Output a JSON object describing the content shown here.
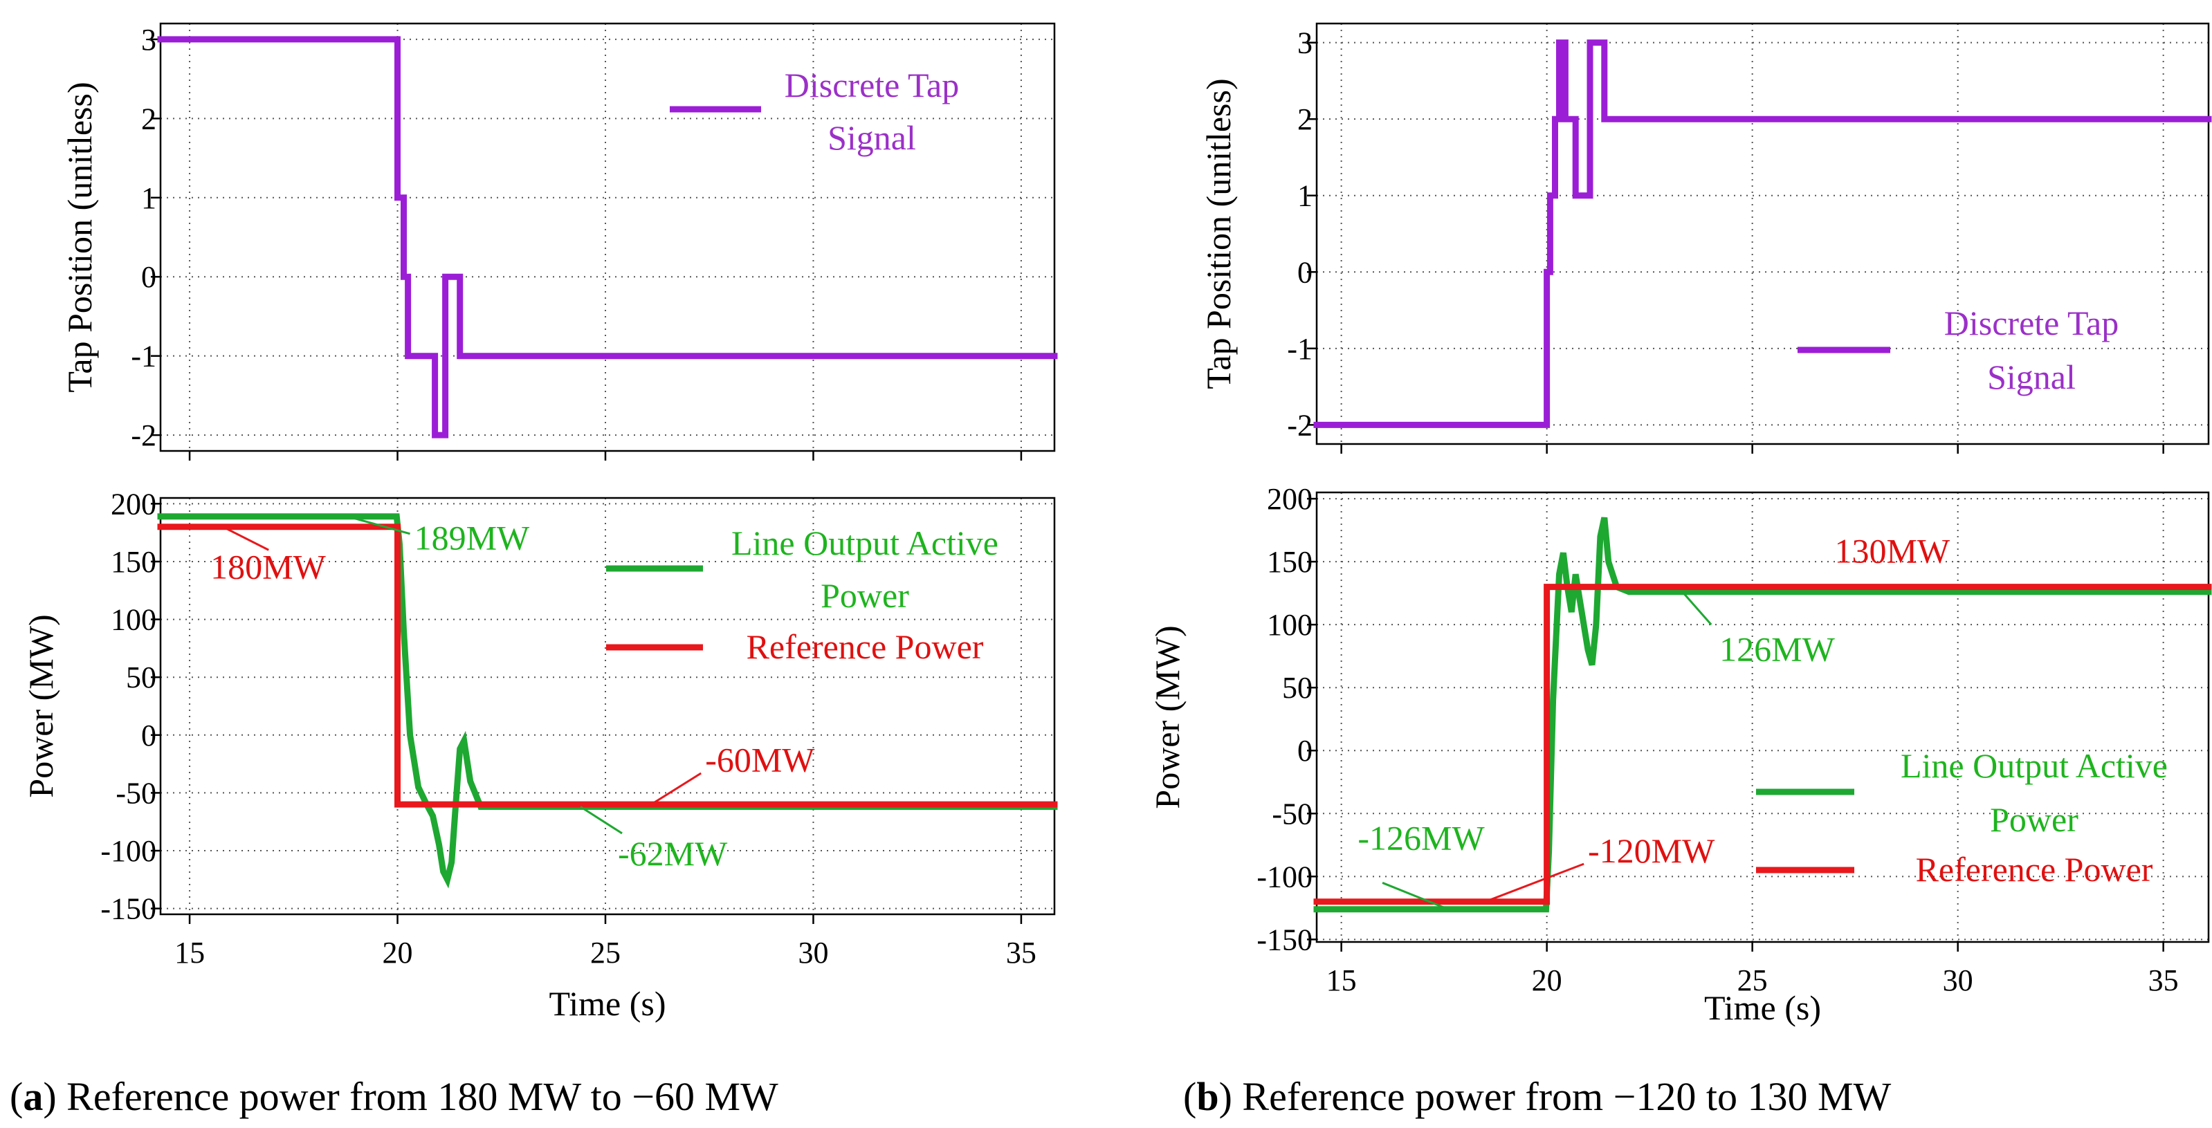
{
  "colors": {
    "tap": "#9B1ED6",
    "tap_text": "#9B30C8",
    "line_output": "#1EA832",
    "line_output_text": "#1EB41E",
    "reference": "#E8181C",
    "reference_text": "#E01010"
  },
  "captions": {
    "a_letter": "a",
    "a_text": "Reference power from 180 MW to −60 MW",
    "b_letter": "b",
    "b_text": "Reference power from −120 to 130 MW"
  },
  "chart_data": [
    {
      "id": "a-tap",
      "type": "line",
      "title": "",
      "xlabel": "",
      "ylabel": "Tap Position (unitless)",
      "xlim": [
        14.3,
        35.8
      ],
      "ylim": [
        -2.2,
        3.2
      ],
      "yticks": [
        3,
        2,
        1,
        0,
        -1,
        -2
      ],
      "ytick_labels": [
        "3",
        "2",
        "1",
        "0",
        "-1",
        "-2"
      ],
      "xticks": [
        15,
        20,
        25,
        30,
        35
      ],
      "xtick_labels": [],
      "grid": true,
      "legend": {
        "position": "top-right",
        "entries": [
          {
            "label_line1": "Discrete Tap",
            "label_line2": "Signal",
            "color": "tap"
          }
        ]
      },
      "series": [
        {
          "name": "Discrete Tap Signal",
          "color": "tap",
          "step": true,
          "x": [
            14.3,
            20.0,
            20.0,
            20.15,
            20.15,
            20.25,
            20.25,
            20.9,
            20.9,
            21.15,
            21.15,
            21.5,
            21.5,
            35.8
          ],
          "y": [
            3,
            3,
            1,
            1,
            0,
            0,
            -1,
            -1,
            -2,
            -2,
            0,
            0,
            -1,
            -1
          ]
        }
      ],
      "annotations": []
    },
    {
      "id": "a-power",
      "type": "line",
      "title": "",
      "xlabel": "Time (s)",
      "ylabel": "Power (MW)",
      "xlim": [
        14.3,
        35.8
      ],
      "ylim": [
        -155,
        205
      ],
      "yticks": [
        200,
        150,
        100,
        50,
        0,
        -50,
        -100,
        -150
      ],
      "ytick_labels": [
        "200",
        "150",
        "100",
        "50",
        "0",
        "-50",
        "-100",
        "-150"
      ],
      "xticks": [
        15,
        20,
        25,
        30,
        35
      ],
      "xtick_labels": [
        "15",
        "20",
        "25",
        "30",
        "35"
      ],
      "grid": true,
      "legend": {
        "position": "top-right",
        "entries": [
          {
            "label_line1": "Line Output Active",
            "label_line2": "Power",
            "color": "line_output"
          },
          {
            "label_line1": "Reference Power",
            "label_line2": "",
            "color": "reference"
          }
        ]
      },
      "series": [
        {
          "name": "Line Output Active Power",
          "color": "line_output",
          "x": [
            14.3,
            19.98,
            20.05,
            20.15,
            20.3,
            20.5,
            20.7,
            20.85,
            21.0,
            21.1,
            21.2,
            21.3,
            21.4,
            21.5,
            21.6,
            21.75,
            22.0,
            22.5,
            35.8
          ],
          "y": [
            189,
            189,
            165,
            90,
            0,
            -45,
            -60,
            -70,
            -95,
            -118,
            -125,
            -110,
            -60,
            -12,
            -5,
            -40,
            -62,
            -62,
            -62
          ]
        },
        {
          "name": "Reference Power",
          "color": "reference",
          "x": [
            14.3,
            20.0,
            20.0,
            35.8
          ],
          "y": [
            180,
            180,
            -60,
            -60
          ]
        }
      ],
      "annotations": [
        {
          "text": "189MW",
          "color": "line_output",
          "from": [
            18.8,
            189
          ],
          "to": [
            20.3,
            174
          ],
          "text_at": [
            20.4,
            170
          ]
        },
        {
          "text": "180MW",
          "color": "reference",
          "from": [
            15.8,
            180
          ],
          "to": [
            16.9,
            160
          ],
          "text_at": [
            15.5,
            145
          ]
        },
        {
          "text": "-60MW",
          "color": "reference",
          "from": [
            26.1,
            -60
          ],
          "to": [
            27.3,
            -33
          ],
          "text_at": [
            27.4,
            -22
          ]
        },
        {
          "text": "-62MW",
          "color": "line_output",
          "from": [
            24.4,
            -62
          ],
          "to": [
            25.4,
            -85
          ],
          "text_at": [
            25.3,
            -103
          ]
        }
      ]
    },
    {
      "id": "b-tap",
      "type": "line",
      "title": "",
      "xlabel": "",
      "ylabel": "Tap Position (unitless)",
      "xlim": [
        14.4,
        36.1
      ],
      "ylim": [
        -2.25,
        3.25
      ],
      "yticks": [
        3,
        2,
        1,
        0,
        -1,
        -2
      ],
      "ytick_labels": [
        "3",
        "2",
        "1",
        "0",
        "-1",
        "-2"
      ],
      "xticks": [
        15,
        20,
        25,
        30,
        35
      ],
      "xtick_labels": [],
      "grid": true,
      "legend": {
        "position": "center-right",
        "entries": [
          {
            "label_line1": "Discrete Tap",
            "label_line2": "Signal",
            "color": "tap"
          }
        ]
      },
      "series": [
        {
          "name": "Discrete Tap Signal",
          "color": "tap",
          "step": true,
          "x": [
            14.4,
            20.0,
            20.0,
            20.08,
            20.08,
            20.2,
            20.2,
            20.3,
            20.3,
            20.45,
            20.45,
            20.7,
            20.7,
            21.05,
            21.05,
            21.4,
            21.4,
            36.1
          ],
          "y": [
            -2,
            -2,
            0,
            0,
            1,
            1,
            2,
            2,
            3,
            3,
            2,
            2,
            1,
            1,
            3,
            3,
            2,
            2
          ]
        }
      ],
      "annotations": []
    },
    {
      "id": "b-power",
      "type": "line",
      "title": "",
      "xlabel": "Time (s)",
      "ylabel": "Power (MW)",
      "xlim": [
        14.4,
        36.1
      ],
      "ylim": [
        -152,
        205
      ],
      "yticks": [
        200,
        150,
        100,
        50,
        0,
        -50,
        -100,
        -150
      ],
      "ytick_labels": [
        "200",
        "150",
        "100",
        "50",
        "0",
        "-50",
        "-100",
        "-150"
      ],
      "xticks": [
        15,
        20,
        25,
        30,
        35
      ],
      "xtick_labels": [
        "15",
        "20",
        "25",
        "30",
        "35"
      ],
      "grid": true,
      "legend": {
        "position": "center-right",
        "entries": [
          {
            "label_line1": "Line Output Active",
            "label_line2": "Power",
            "color": "line_output"
          },
          {
            "label_line1": "Reference Power",
            "label_line2": "",
            "color": "reference"
          }
        ]
      },
      "series": [
        {
          "name": "Line Output Active Power",
          "color": "line_output",
          "x": [
            14.4,
            19.98,
            20.05,
            20.15,
            20.3,
            20.4,
            20.5,
            20.6,
            20.7,
            20.85,
            21.0,
            21.1,
            21.2,
            21.3,
            21.4,
            21.5,
            21.7,
            22.0,
            36.1
          ],
          "y": [
            -126,
            -126,
            -80,
            40,
            140,
            157,
            130,
            110,
            140,
            110,
            80,
            68,
            100,
            170,
            185,
            150,
            130,
            126,
            126
          ]
        },
        {
          "name": "Reference Power",
          "color": "reference",
          "x": [
            14.4,
            20.0,
            20.0,
            36.1
          ],
          "y": [
            -120,
            -120,
            130,
            130
          ]
        }
      ],
      "annotations": [
        {
          "text": "130MW",
          "color": "reference",
          "from": null,
          "to": null,
          "text_at": [
            27.0,
            158
          ]
        },
        {
          "text": "126MW",
          "color": "line_output",
          "from": [
            23.3,
            126
          ],
          "to": [
            24.0,
            100
          ],
          "text_at": [
            24.2,
            80
          ]
        },
        {
          "text": "-126MW",
          "color": "line_output",
          "from": [
            16.0,
            -105
          ],
          "to": [
            17.6,
            -126
          ],
          "text_at": [
            15.4,
            -70
          ]
        },
        {
          "text": "-120MW",
          "color": "reference",
          "from": [
            18.5,
            -120
          ],
          "to": [
            20.9,
            -90
          ],
          "text_at": [
            21.0,
            -80
          ]
        }
      ]
    }
  ]
}
